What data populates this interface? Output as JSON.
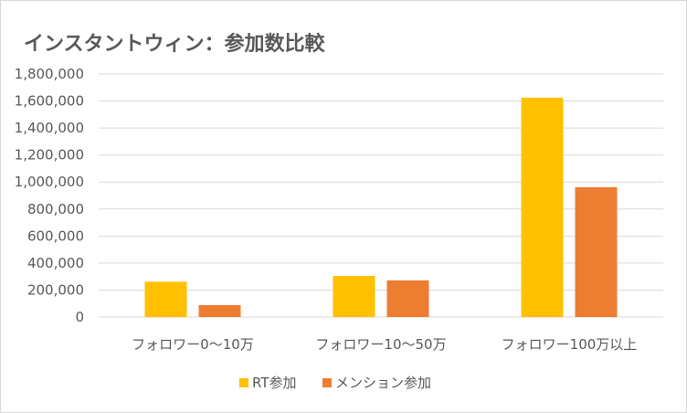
{
  "chart_data": {
    "type": "bar",
    "title": "インスタントウィン：参加数比較",
    "categories": [
      "フォロワー0〜10万",
      "フォロワー10〜50万",
      "フォロワー100万以上"
    ],
    "series": [
      {
        "name": "RT参加",
        "values": [
          262000,
          305000,
          1625000
        ],
        "color": "#ffc000"
      },
      {
        "name": "メンション参加",
        "values": [
          88000,
          272000,
          962000
        ],
        "color": "#ed7d31"
      }
    ],
    "ylim": [
      0,
      1800000
    ],
    "yticks": [
      "0",
      "200,000",
      "400,000",
      "600,000",
      "800,000",
      "1,000,000",
      "1,200,000",
      "1,400,000",
      "1,600,000",
      "1,800,000"
    ],
    "ytick_values": [
      0,
      200000,
      400000,
      600000,
      800000,
      1000000,
      1200000,
      1400000,
      1600000,
      1800000
    ],
    "grid": true,
    "legend_position": "bottom",
    "gridline_color": "#d9d9d9"
  }
}
